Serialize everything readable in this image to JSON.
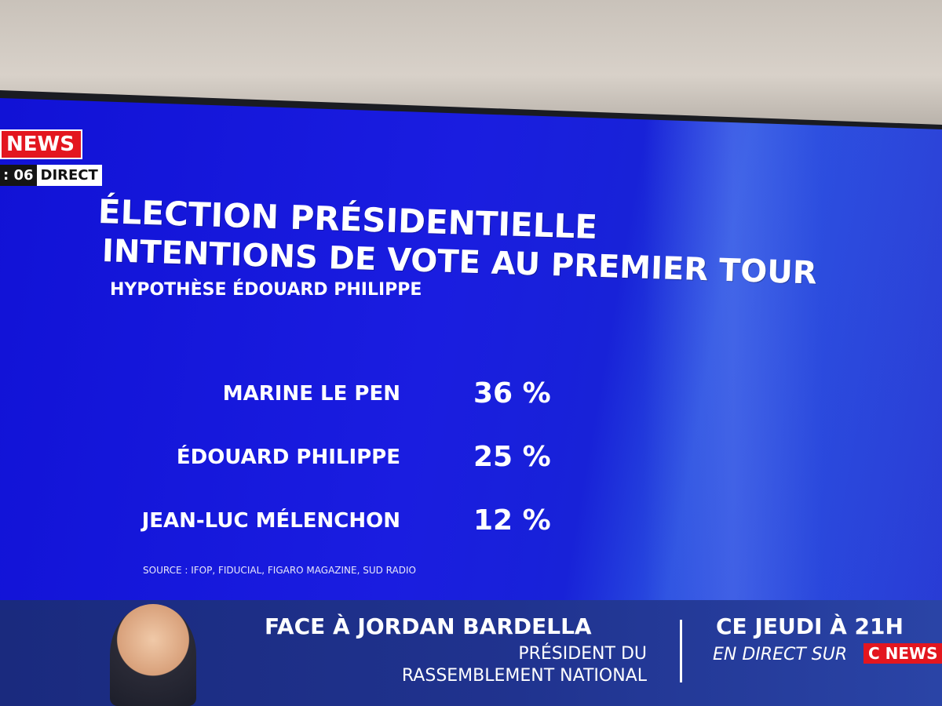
{
  "channel": {
    "logo": "NEWS",
    "clock": ": 06",
    "live_label": "DIRECT"
  },
  "headline": {
    "line1": "ÉLECTION PRÉSIDENTIELLE",
    "line2": "INTENTIONS DE VOTE AU PREMIER TOUR",
    "subtitle": "HYPOTHÈSE ÉDOUARD PHILIPPE"
  },
  "results": [
    {
      "candidate": "MARINE LE PEN",
      "percent": "36 %"
    },
    {
      "candidate": "ÉDOUARD PHILIPPE",
      "percent": "25 %"
    },
    {
      "candidate": "JEAN-LUC MÉLENCHON",
      "percent": "12 %"
    }
  ],
  "source": "SOURCE : IFOP, FIDUCIAL, FIGARO MAGAZINE, SUD RADIO",
  "banner": {
    "show_title": "FACE À JORDAN BARDELLA",
    "guest_role_line1": "PRÉSIDENT DU",
    "guest_role_line2": "RASSEMBLEMENT NATIONAL",
    "airdate": "CE JEUDI À 21H",
    "live_on": "EN DIRECT SUR",
    "logo": "C NEWS"
  },
  "colors": {
    "screen": "#1a1de0",
    "logo_red": "#e3161f",
    "banner": "#20338f"
  }
}
